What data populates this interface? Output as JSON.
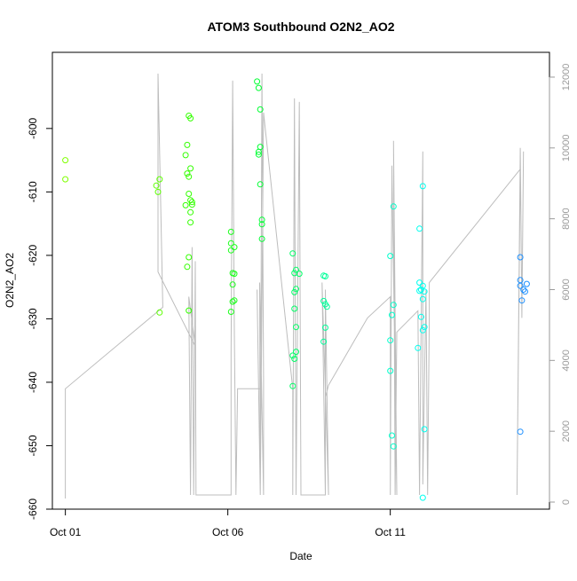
{
  "chart_data": {
    "type": "scatter",
    "title": "ATOM3 Southbound O2N2_AO2",
    "xlabel": "Date",
    "ylabel": "O2N2_AO2",
    "x_ticks": [
      "Oct 01",
      "Oct 06",
      "Oct 11"
    ],
    "x_tick_days": [
      1,
      6,
      11
    ],
    "xlim_days": [
      0.6,
      15.9
    ],
    "ylim": [
      -660,
      -588
    ],
    "y_ticks": [
      -660,
      -650,
      -640,
      -630,
      -620,
      -610,
      -600
    ],
    "secondary_y": {
      "type": "line",
      "color": "#bdbdbd",
      "ylim": [
        -200,
        12700
      ],
      "ticks": [
        0,
        2000,
        4000,
        6000,
        8000,
        10000,
        12000
      ]
    },
    "secondary_series": [
      [
        1.0,
        100
      ],
      [
        1.0,
        3200
      ],
      [
        4.0,
        5500
      ],
      [
        3.85,
        12100
      ],
      [
        3.85,
        6500
      ],
      [
        5.0,
        4400
      ],
      [
        4.8,
        5800
      ],
      [
        4.85,
        200
      ],
      [
        4.9,
        7200
      ],
      [
        4.95,
        200
      ],
      [
        5.0,
        6800
      ],
      [
        5.02,
        200
      ],
      [
        6.1,
        200
      ],
      [
        6.1,
        4200
      ],
      [
        6.15,
        11900
      ],
      [
        6.2,
        4800
      ],
      [
        6.25,
        200
      ],
      [
        6.3,
        3100
      ],
      [
        6.3,
        3200
      ],
      [
        7.0,
        3200
      ],
      [
        7.0,
        200
      ],
      [
        6.9,
        6000
      ],
      [
        7.0,
        200
      ],
      [
        7.05,
        12100
      ],
      [
        7.1,
        3500
      ],
      [
        7.1,
        200
      ],
      [
        6.98,
        6200
      ],
      [
        7.0,
        200
      ],
      [
        7.1,
        11000
      ],
      [
        8.0,
        3200
      ],
      [
        8.0,
        200
      ],
      [
        8.05,
        11400
      ],
      [
        8.1,
        200
      ],
      [
        8.2,
        11300
      ],
      [
        8.25,
        200
      ],
      [
        9.0,
        200
      ],
      [
        9.0,
        6000
      ],
      [
        9.1,
        200
      ],
      [
        8.9,
        6200
      ],
      [
        9.0,
        200
      ],
      [
        9.0,
        2950
      ],
      [
        9.1,
        3300
      ],
      [
        10.3,
        5200
      ],
      [
        11.0,
        5800
      ],
      [
        11.0,
        200
      ],
      [
        11.05,
        9500
      ],
      [
        11.1,
        6500
      ],
      [
        11.2,
        200
      ],
      [
        11.1,
        10200
      ],
      [
        11.15,
        200
      ],
      [
        11.2,
        4800
      ],
      [
        11.85,
        5400
      ],
      [
        11.9,
        200
      ],
      [
        12.0,
        9900
      ],
      [
        12.0,
        500
      ],
      [
        12.1,
        6000
      ],
      [
        12.15,
        200
      ],
      [
        12.2,
        5200
      ],
      [
        12.2,
        6200
      ],
      [
        15.0,
        9400
      ],
      [
        14.9,
        200
      ],
      [
        15.0,
        10000
      ],
      [
        15.05,
        5200
      ],
      [
        15.1,
        9900
      ]
    ],
    "series": [
      {
        "color": "#7fff00",
        "points": [
          [
            1.0,
            -605
          ],
          [
            1.0,
            -608
          ]
        ]
      },
      {
        "color": "#5cff00",
        "points": [
          [
            3.8,
            -609
          ],
          [
            3.85,
            -610
          ],
          [
            3.9,
            -608
          ],
          [
            3.9,
            -629
          ]
        ]
      },
      {
        "color": "#33ff00",
        "points": [
          [
            4.8,
            -598
          ],
          [
            4.85,
            -598.4
          ],
          [
            4.75,
            -602.6
          ],
          [
            4.7,
            -604.2
          ],
          [
            4.75,
            -607.1
          ],
          [
            4.8,
            -607.6
          ],
          [
            4.85,
            -606.3
          ],
          [
            4.8,
            -610.3
          ],
          [
            4.85,
            -611.3
          ],
          [
            4.9,
            -611.6
          ],
          [
            4.9,
            -612
          ],
          [
            4.7,
            -612.1
          ],
          [
            4.85,
            -613.2
          ],
          [
            4.85,
            -614.8
          ],
          [
            4.8,
            -620.3
          ],
          [
            4.75,
            -621.8
          ],
          [
            4.8,
            -628.7
          ]
        ]
      },
      {
        "color": "#1aff1a",
        "points": [
          [
            6.1,
            -616.3
          ],
          [
            6.1,
            -618.1
          ],
          [
            6.2,
            -618.7
          ],
          [
            6.1,
            -619.2
          ],
          [
            6.15,
            -622.8
          ],
          [
            6.2,
            -622.9
          ],
          [
            6.15,
            -624.6
          ],
          [
            6.2,
            -627.1
          ],
          [
            6.15,
            -627.3
          ],
          [
            6.1,
            -628.9
          ]
        ]
      },
      {
        "color": "#00ff33",
        "points": [
          [
            6.9,
            -592.6
          ],
          [
            6.95,
            -593.6
          ],
          [
            7.0,
            -597
          ],
          [
            6.95,
            -603.7
          ],
          [
            6.95,
            -604.1
          ],
          [
            7.0,
            -602.9
          ],
          [
            7.0,
            -608.8
          ],
          [
            7.05,
            -614.4
          ],
          [
            7.05,
            -615.1
          ],
          [
            7.05,
            -617.4
          ]
        ]
      },
      {
        "color": "#00ff66",
        "points": [
          [
            8.0,
            -619.7
          ],
          [
            8.05,
            -622.8
          ],
          [
            8.1,
            -622.3
          ],
          [
            8.2,
            -622.9
          ],
          [
            8.1,
            -625.3
          ],
          [
            8.05,
            -625.8
          ],
          [
            8.05,
            -628.4
          ],
          [
            8.1,
            -631.3
          ],
          [
            8.1,
            -635.2
          ],
          [
            8.0,
            -635.8
          ],
          [
            8.05,
            -636.3
          ],
          [
            8.0,
            -640.6
          ]
        ]
      },
      {
        "color": "#00ff99",
        "points": [
          [
            8.95,
            -623.2
          ],
          [
            9.0,
            -623.3
          ],
          [
            8.95,
            -627.2
          ],
          [
            9.0,
            -627.7
          ],
          [
            9.05,
            -628.1
          ],
          [
            9.0,
            -631.4
          ],
          [
            8.95,
            -633.6
          ]
        ]
      },
      {
        "color": "#00ffcc",
        "points": [
          [
            11.1,
            -612.3
          ],
          [
            11.0,
            -620.1
          ],
          [
            11.1,
            -627.8
          ],
          [
            11.05,
            -629.4
          ],
          [
            11.0,
            -633.4
          ],
          [
            11.0,
            -638.2
          ],
          [
            11.05,
            -648.4
          ],
          [
            11.1,
            -650.1
          ]
        ]
      },
      {
        "color": "#00ffee",
        "points": [
          [
            12.0,
            -609.1
          ],
          [
            11.9,
            -615.8
          ],
          [
            11.9,
            -624.3
          ],
          [
            12.0,
            -624.8
          ],
          [
            11.95,
            -625.4
          ],
          [
            12.05,
            -625.7
          ],
          [
            11.9,
            -625.6
          ],
          [
            12.0,
            -626.9
          ],
          [
            11.95,
            -629.7
          ],
          [
            12.05,
            -631.3
          ],
          [
            12.0,
            -631.8
          ],
          [
            11.85,
            -634.6
          ],
          [
            12.05,
            -647.4
          ],
          [
            12.0,
            -658.2
          ]
        ]
      },
      {
        "color": "#1e90ff",
        "points": [
          [
            15.0,
            -620.3
          ],
          [
            15.0,
            -623.9
          ],
          [
            15.0,
            -624.8
          ],
          [
            15.2,
            -624.5
          ],
          [
            15.1,
            -625.4
          ],
          [
            15.15,
            -625.7
          ],
          [
            15.05,
            -627.1
          ],
          [
            15.0,
            -647.8
          ]
        ]
      }
    ]
  }
}
